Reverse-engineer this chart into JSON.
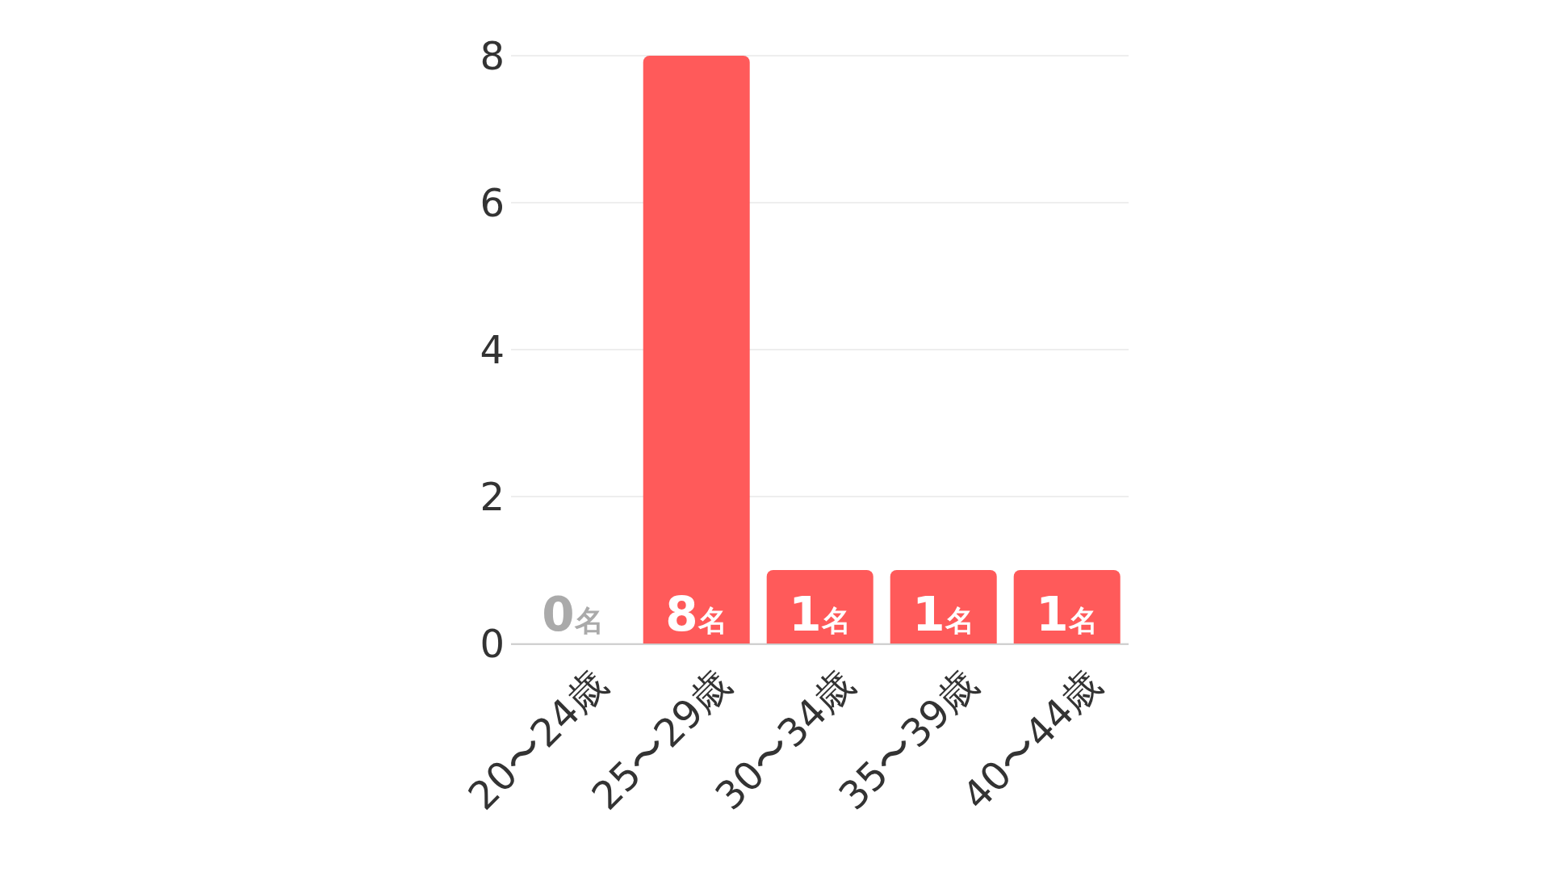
{
  "chart_data": {
    "type": "bar",
    "categories": [
      "20〜24歳",
      "25〜29歳",
      "30〜34歳",
      "35〜39歳",
      "40〜44歳"
    ],
    "values": [
      0,
      8,
      1,
      1,
      1
    ],
    "value_labels": [
      "0名",
      "8名",
      "1名",
      "1名",
      "1名"
    ],
    "color": "#ff5a5a",
    "ylim": [
      0,
      8
    ],
    "yticks": [
      0,
      2,
      4,
      6,
      8
    ],
    "grid": "y",
    "legend": false
  }
}
